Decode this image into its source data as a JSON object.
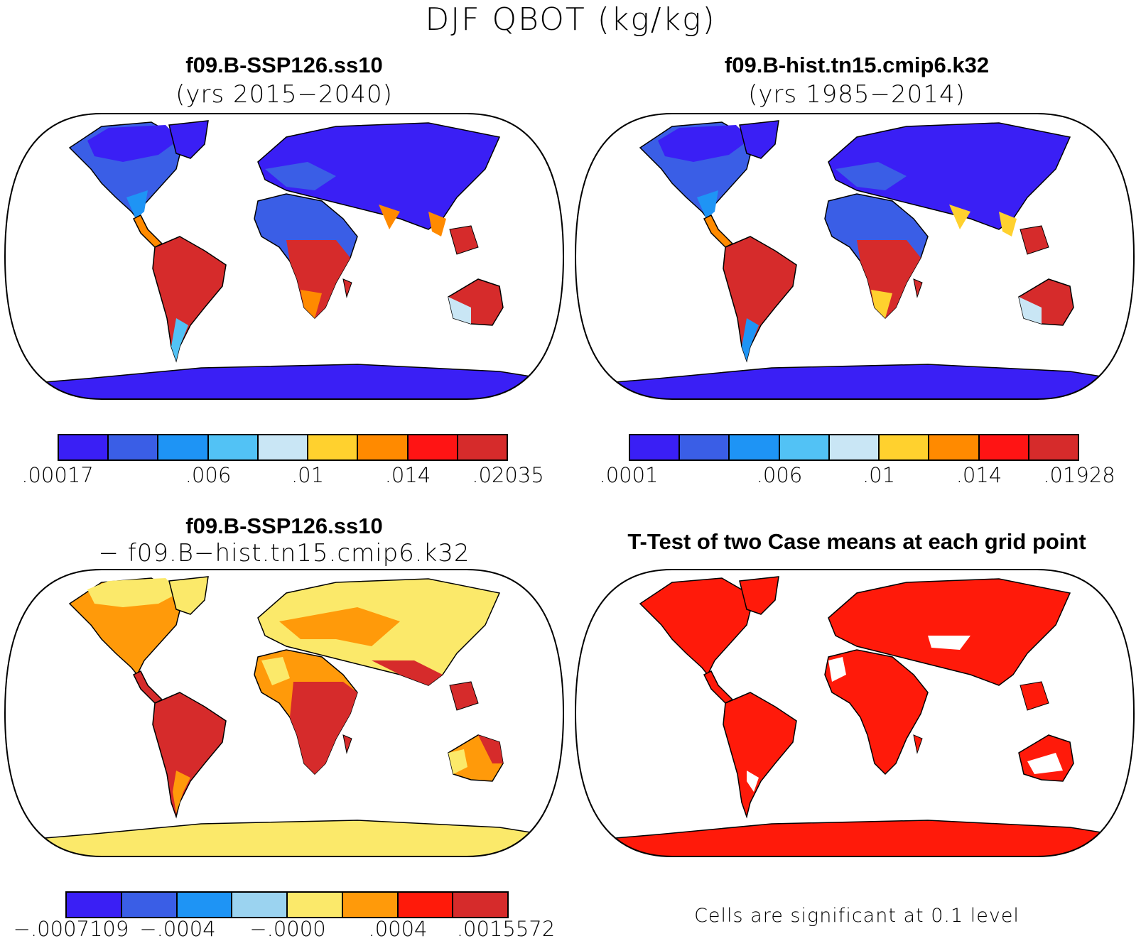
{
  "figure": {
    "title": "DJF QBOT (kg/kg)"
  },
  "panels": [
    {
      "title": "f09.B-SSP126.ss10",
      "subtitle": "(yrs 2015−2040)",
      "colorbar": {
        "colors": [
          "#3a1ff5",
          "#3a5ee6",
          "#1e94f5",
          "#52c2f5",
          "#c9e6f5",
          "#ffd12e",
          "#ff8a00",
          "#ff1414",
          "#d62b2b"
        ],
        "tick_labels": [
          ".00017",
          ".006",
          ".01",
          ".014",
          ".02035"
        ]
      }
    },
    {
      "title": "f09.B-hist.tn15.cmip6.k32",
      "subtitle": "(yrs 1985−2014)",
      "colorbar": {
        "colors": [
          "#3a1ff5",
          "#3a5ee6",
          "#1e94f5",
          "#52c2f5",
          "#c9e6f5",
          "#ffd12e",
          "#ff8a00",
          "#ff1414",
          "#d62b2b"
        ],
        "tick_labels": [
          ".0001",
          ".006",
          ".01",
          ".014",
          ".01928"
        ]
      }
    },
    {
      "title": "f09.B-SSP126.ss10",
      "subtitle": "− f09.B−hist.tn15.cmip6.k32",
      "colorbar": {
        "colors": [
          "#3a1ff5",
          "#3a5ee6",
          "#1e94f5",
          "#9bd3f0",
          "#fbe96a",
          "#ff9a0a",
          "#ff1a0a",
          "#d62b2b"
        ],
        "tick_labels": [
          "−.0007109",
          "−.0004",
          "−.0000",
          ".0004",
          ".0015572"
        ]
      }
    },
    {
      "title": "T-Test of two Case means at each grid point",
      "note": "Cells are significant at 0.1 level"
    }
  ]
}
